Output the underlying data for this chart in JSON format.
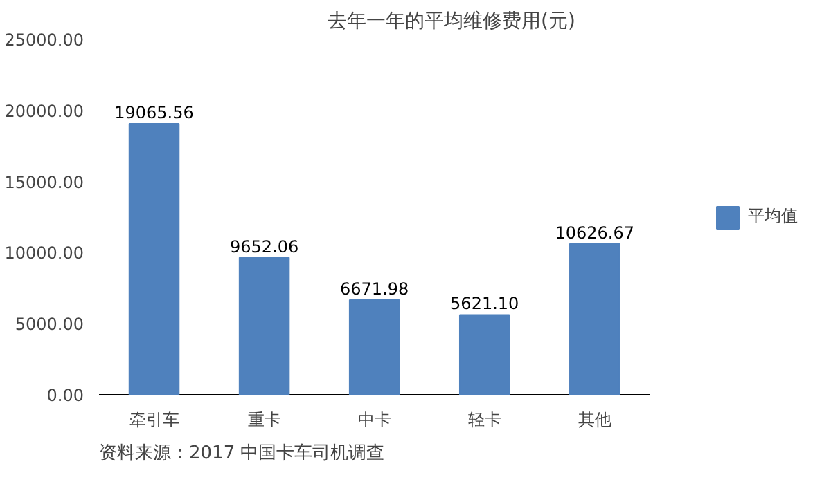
{
  "chart_data": {
    "type": "bar",
    "title": "去年一年的平均维修费用(元)",
    "categories": [
      "牵引车",
      "重卡",
      "中卡",
      "轻卡",
      "其他"
    ],
    "series": [
      {
        "name": "平均值",
        "color": "#4f81bd",
        "values": [
          19065.56,
          9652.06,
          6671.98,
          5621.1,
          10626.67
        ],
        "value_labels": [
          "19065.56",
          "9652.06",
          "6671.98",
          "5621.10",
          "10626.67"
        ]
      }
    ],
    "ylim": [
      0,
      25000
    ],
    "yticks": [
      {
        "value": 0,
        "label": "0.00"
      },
      {
        "value": 5000,
        "label": "5000.00"
      },
      {
        "value": 10000,
        "label": "10000.00"
      },
      {
        "value": 15000,
        "label": "15000.00"
      },
      {
        "value": 20000,
        "label": "20000.00"
      },
      {
        "value": 25000,
        "label": "25000.00"
      }
    ],
    "legend": "right",
    "annotations": [
      "资料来源：2017  中国卡车司机调查"
    ]
  }
}
